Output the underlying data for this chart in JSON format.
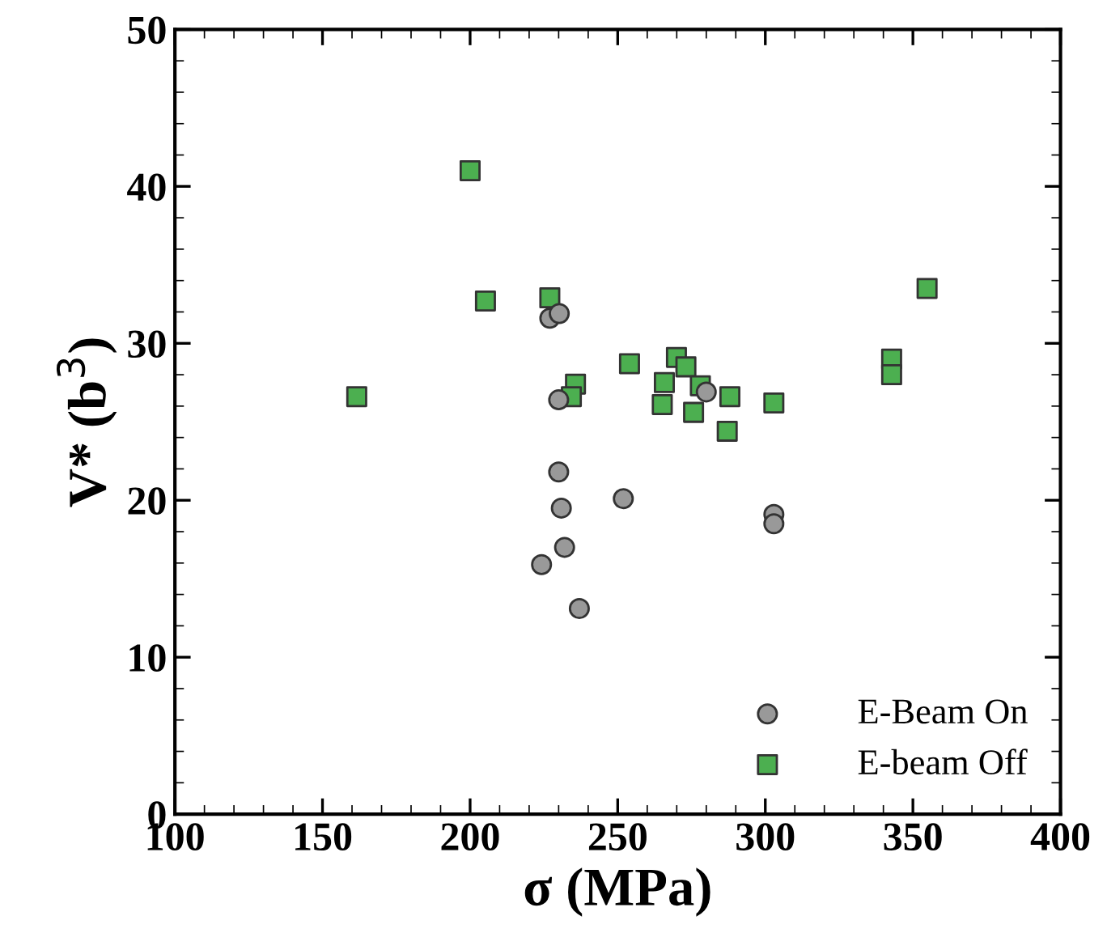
{
  "chart_data": {
    "type": "scatter",
    "xlabel": "σ (MPa)",
    "ylabel": "V* (b$^{3}$)",
    "xlim": [
      100,
      400
    ],
    "ylim": [
      0,
      50
    ],
    "xticks": [
      100,
      150,
      200,
      250,
      300,
      350,
      400
    ],
    "yticks": [
      0,
      10,
      20,
      30,
      40,
      50
    ],
    "grid": false,
    "legend": "bottom right",
    "series": [
      {
        "name": "E-Beam On",
        "color": "#999999",
        "marker": "circle",
        "x": [
          227,
          230.2,
          230,
          280,
          230,
          251.9,
          230.9,
          302.9,
          302.9,
          232,
          224.2,
          237
        ],
        "values": [
          31.6,
          31.9,
          26.4,
          26.9,
          21.8,
          20.1,
          19.5,
          19.1,
          18.5,
          17.0,
          15.9,
          13.1
        ]
      },
      {
        "name": "E-beam Off",
        "color": "#4caf50",
        "marker": "square",
        "x": [
          200,
          205.2,
          227,
          161.6,
          254,
          269.9,
          273.1,
          265.8,
          235.7,
          234.3,
          278,
          288,
          265.1,
          275.7,
          287.1,
          302.9,
          342.8,
          342.8,
          354.8
        ],
        "values": [
          41.0,
          32.7,
          32.9,
          26.6,
          28.7,
          29.1,
          28.5,
          27.5,
          27.4,
          26.6,
          27.3,
          26.6,
          26.1,
          25.6,
          24.4,
          26.2,
          29.0,
          28.0,
          33.5
        ]
      }
    ]
  }
}
